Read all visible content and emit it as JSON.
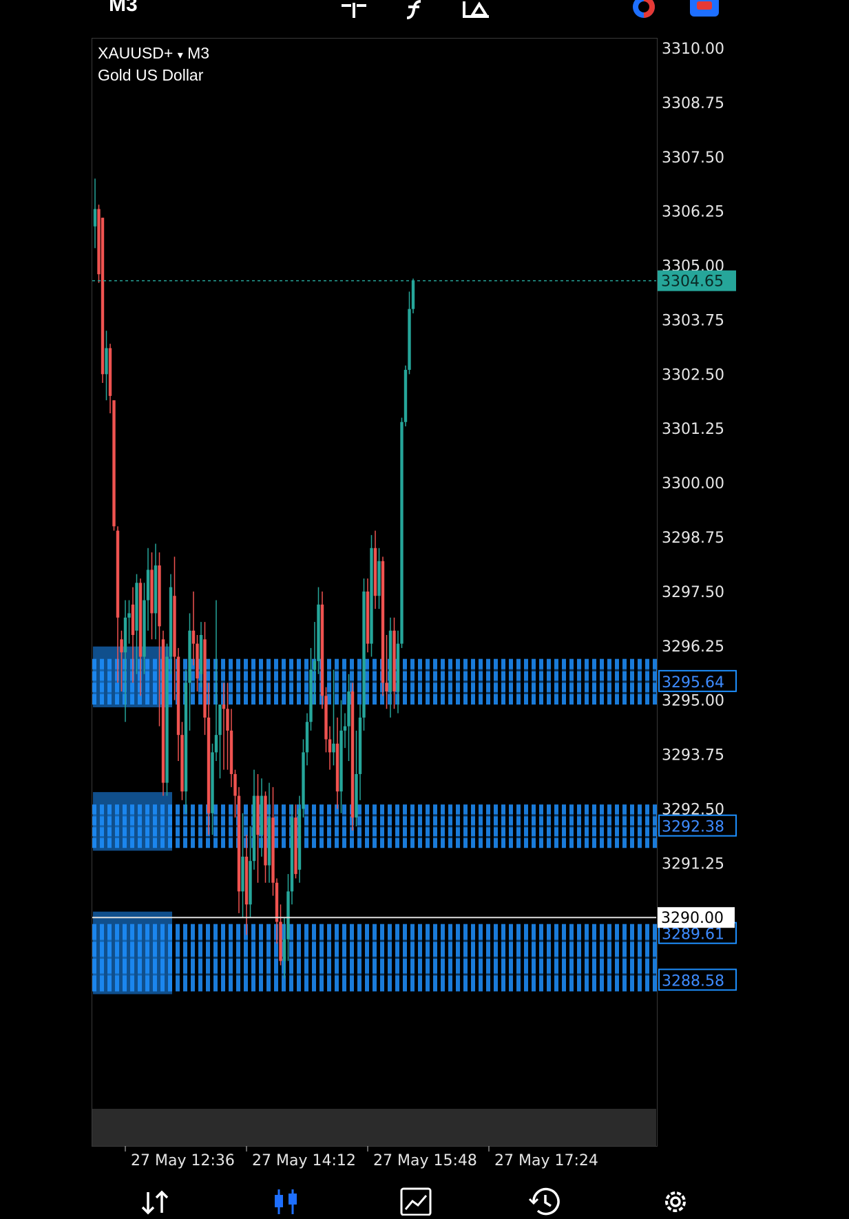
{
  "toolbar": {
    "timeframe": "M3",
    "icons": [
      "crosshair-icon",
      "indicators-icon",
      "objects-icon",
      "one-click-trading-icon",
      "chart-settings-icon"
    ]
  },
  "chart": {
    "symbol": "XAUUSD+",
    "symbol_caret": "▾",
    "timeframe": "M3",
    "description": "Gold US Dollar",
    "current_price": "3304.65",
    "level_price": "3290.00"
  },
  "chart_data": {
    "type": "candlestick",
    "ylim": [
      3287.5,
      3310.5
    ],
    "y_ticks": [
      "3310.00",
      "3308.75",
      "3307.50",
      "3306.25",
      "3305.00",
      "3303.75",
      "3302.50",
      "3301.25",
      "3300.00",
      "3298.75",
      "3297.50",
      "3296.25",
      "3295.00",
      "3293.75",
      "3292.50",
      "3291.25",
      "3290.00"
    ],
    "x_ticks": [
      "27 May 12:36",
      "27 May 14:12",
      "27 May 15:48",
      "27 May 17:24"
    ],
    "x_tick_index": [
      8,
      40,
      72,
      104
    ],
    "candles": [
      [
        3305.9,
        3307.0,
        3305.4,
        3306.3
      ],
      [
        3306.3,
        3306.4,
        3304.6,
        3304.8
      ],
      [
        3306.1,
        3306.1,
        3302.3,
        3302.5
      ],
      [
        3302.5,
        3303.5,
        3301.9,
        3303.1
      ],
      [
        3303.1,
        3303.2,
        3301.6,
        3302.0
      ],
      [
        3301.9,
        3301.9,
        3298.9,
        3299.0
      ],
      [
        3298.9,
        3299.0,
        3295.4,
        3296.9
      ],
      [
        3296.4,
        3296.6,
        3295.2,
        3296.1
      ],
      [
        3296.1,
        3297.3,
        3294.5,
        3296.9
      ],
      [
        3296.9,
        3297.3,
        3296.3,
        3297.0
      ],
      [
        3297.2,
        3297.6,
        3295.4,
        3296.5
      ],
      [
        3296.6,
        3297.9,
        3295.6,
        3297.7
      ],
      [
        3297.7,
        3297.8,
        3295.1,
        3296.0
      ],
      [
        3296.0,
        3297.7,
        3295.6,
        3297.3
      ],
      [
        3297.3,
        3298.5,
        3296.6,
        3298.0
      ],
      [
        3298.0,
        3298.4,
        3296.4,
        3297.0
      ],
      [
        3297.0,
        3298.6,
        3296.4,
        3298.1
      ],
      [
        3298.1,
        3298.4,
        3294.4,
        3296.7
      ],
      [
        3296.4,
        3296.6,
        3292.8,
        3293.1
      ],
      [
        3293.1,
        3296.3,
        3292.8,
        3296.0
      ],
      [
        3296.0,
        3297.9,
        3295.6,
        3297.6
      ],
      [
        3297.4,
        3298.3,
        3295.0,
        3296.0
      ],
      [
        3296.0,
        3296.2,
        3293.6,
        3294.2
      ],
      [
        3294.2,
        3294.5,
        3292.7,
        3292.9
      ],
      [
        3292.9,
        3295.7,
        3292.4,
        3295.4
      ],
      [
        3295.4,
        3297.0,
        3294.3,
        3296.6
      ],
      [
        3296.6,
        3297.5,
        3295.8,
        3296.3
      ],
      [
        3296.3,
        3296.5,
        3295.2,
        3295.5
      ],
      [
        3295.6,
        3296.8,
        3295.3,
        3296.5
      ],
      [
        3296.4,
        3296.8,
        3294.2,
        3294.6
      ],
      [
        3294.6,
        3295.4,
        3291.9,
        3292.4
      ],
      [
        3292.4,
        3294.0,
        3291.9,
        3293.8
      ],
      [
        3293.8,
        3297.3,
        3293.6,
        3294.2
      ],
      [
        3294.2,
        3294.8,
        3293.2,
        3294.9
      ],
      [
        3294.9,
        3295.4,
        3293.4,
        3294.8
      ],
      [
        3294.8,
        3295.4,
        3293.4,
        3294.3
      ],
      [
        3294.3,
        3294.8,
        3293.0,
        3293.3
      ],
      [
        3293.3,
        3293.4,
        3292.3,
        3292.8
      ],
      [
        3292.8,
        3293.0,
        3290.1,
        3290.6
      ],
      [
        3290.6,
        3292.4,
        3290.0,
        3291.4
      ],
      [
        3291.4,
        3291.9,
        3289.6,
        3290.3
      ],
      [
        3290.3,
        3292.1,
        3290.0,
        3291.3
      ],
      [
        3291.3,
        3293.4,
        3291.1,
        3292.8
      ],
      [
        3292.8,
        3293.3,
        3290.8,
        3291.9
      ],
      [
        3291.9,
        3293.2,
        3291.4,
        3292.8
      ],
      [
        3292.8,
        3292.9,
        3290.8,
        3291.2
      ],
      [
        3291.2,
        3293.1,
        3290.8,
        3292.3
      ],
      [
        3292.3,
        3293.0,
        3290.5,
        3290.8
      ],
      [
        3290.8,
        3290.9,
        3289.4,
        3289.9
      ],
      [
        3289.9,
        3290.3,
        3288.9,
        3289.0
      ],
      [
        3289.0,
        3290.0,
        3288.6,
        3289.5
      ],
      [
        3289.5,
        3291.0,
        3289.0,
        3290.6
      ],
      [
        3290.6,
        3292.6,
        3290.3,
        3292.3
      ],
      [
        3292.3,
        3292.6,
        3290.9,
        3291.0
      ],
      [
        3291.1,
        3292.8,
        3290.8,
        3292.5
      ],
      [
        3292.5,
        3294.1,
        3292.3,
        3293.8
      ],
      [
        3293.8,
        3294.7,
        3293.5,
        3294.5
      ],
      [
        3294.5,
        3296.2,
        3294.3,
        3295.7
      ],
      [
        3295.7,
        3296.8,
        3294.9,
        3295.9
      ],
      [
        3295.9,
        3297.6,
        3295.6,
        3297.2
      ],
      [
        3297.2,
        3297.5,
        3294.8,
        3295.1
      ],
      [
        3295.1,
        3295.3,
        3293.8,
        3294.1
      ],
      [
        3294.1,
        3294.4,
        3293.4,
        3293.8
      ],
      [
        3293.8,
        3295.7,
        3293.5,
        3294.0
      ],
      [
        3294.0,
        3294.6,
        3292.5,
        3292.9
      ],
      [
        3292.9,
        3295.0,
        3292.4,
        3294.3
      ],
      [
        3294.3,
        3294.7,
        3293.9,
        3294.4
      ],
      [
        3294.4,
        3295.6,
        3293.6,
        3295.2
      ],
      [
        3295.2,
        3295.4,
        3292.0,
        3292.3
      ],
      [
        3292.3,
        3294.3,
        3292.1,
        3293.3
      ],
      [
        3293.3,
        3294.9,
        3292.7,
        3294.6
      ],
      [
        3294.6,
        3297.8,
        3294.3,
        3297.5
      ],
      [
        3297.5,
        3297.8,
        3296.1,
        3296.3
      ],
      [
        3296.3,
        3298.8,
        3296.0,
        3298.5
      ],
      [
        3298.5,
        3298.9,
        3297.1,
        3297.4
      ],
      [
        3297.4,
        3298.5,
        3297.1,
        3298.2
      ],
      [
        3298.2,
        3298.3,
        3295.1,
        3295.4
      ],
      [
        3295.4,
        3296.5,
        3294.8,
        3295.2
      ],
      [
        3295.2,
        3296.9,
        3294.6,
        3296.6
      ],
      [
        3296.6,
        3296.9,
        3294.8,
        3295.2
      ],
      [
        3295.2,
        3296.6,
        3294.7,
        3296.3
      ],
      [
        3296.3,
        3301.5,
        3296.2,
        3301.4
      ],
      [
        3301.4,
        3302.7,
        3301.3,
        3302.6
      ],
      [
        3302.6,
        3304.4,
        3302.5,
        3304.0
      ],
      [
        3304.0,
        3304.7,
        3303.9,
        3304.65
      ]
    ],
    "zones": [
      {
        "from": 3294.9,
        "to": 3295.95,
        "labels": [
          "3295.64"
        ]
      },
      {
        "from": 3291.6,
        "to": 3292.6,
        "labels": [
          "3292.38"
        ]
      },
      {
        "from": 3288.3,
        "to": 3289.85,
        "labels": [
          "3289.61",
          "3288.58"
        ]
      }
    ],
    "grid": false
  },
  "bottom_nav": [
    {
      "name": "quotes-icon"
    },
    {
      "name": "chart-icon",
      "active": true
    },
    {
      "name": "trade-icon"
    },
    {
      "name": "history-icon"
    },
    {
      "name": "settings-icon"
    }
  ],
  "colors": {
    "up": "#26a69a",
    "down": "#ef5350",
    "zone": "#1e90ff",
    "accent": "#1e6fff",
    "price_tag": "#26a69a"
  }
}
